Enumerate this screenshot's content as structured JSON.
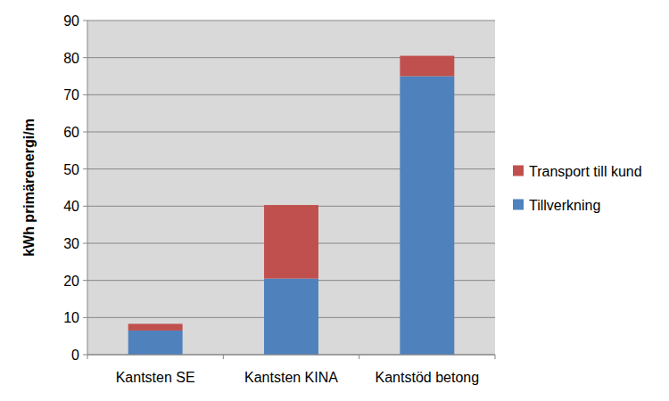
{
  "chart_data": {
    "type": "bar",
    "stacked": true,
    "y_label": "kWh primärenergi/m",
    "categories": [
      "Kantsten SE",
      "Kantsten KINA",
      "Kantstöd betong"
    ],
    "series": [
      {
        "name": "Tillverkning",
        "color": "#4f81bd",
        "values": [
          6.5,
          20.5,
          75
        ]
      },
      {
        "name": "Transport till kund",
        "color": "#c0504d",
        "values": [
          1.8,
          19.8,
          5.5
        ]
      }
    ],
    "ylim": [
      0,
      90
    ],
    "yticks": [
      0,
      10,
      20,
      30,
      40,
      50,
      60,
      70,
      80,
      90
    ],
    "grid": true,
    "legend": "right"
  }
}
